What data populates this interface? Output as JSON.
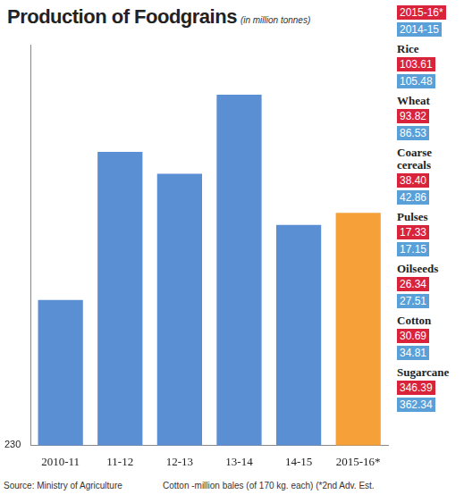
{
  "chart_data": {
    "type": "bar",
    "title": "Production of Foodgrains",
    "subtitle": "(in million tonnes)",
    "categories": [
      "2010-11",
      "11-12",
      "12-13",
      "13-14",
      "14-15",
      "2015-16*"
    ],
    "values": [
      244.5,
      259.3,
      257.1,
      265.0,
      252.0,
      253.2
    ],
    "colors": [
      "#5b8fd3",
      "#5b8fd3",
      "#5b8fd3",
      "#5b8fd3",
      "#5b8fd3",
      "#f6a03a"
    ],
    "ylim": [
      230,
      270
    ],
    "yticks": [
      230
    ],
    "grid": false,
    "side_panel": {
      "headers": [
        {
          "label": "2015-16*",
          "color": "#d8233a"
        },
        {
          "label": "2014-15",
          "color": "#5aa0d8"
        }
      ],
      "items": [
        {
          "label": "Rice",
          "values": [
            "103.61",
            "105.48"
          ]
        },
        {
          "label": "Wheat",
          "values": [
            "93.82",
            "86.53"
          ]
        },
        {
          "label": "Coarse cereals",
          "values": [
            "38.40",
            "42.86"
          ]
        },
        {
          "label": "Pulses",
          "values": [
            "17.33",
            "17.15"
          ]
        },
        {
          "label": "Oilseeds",
          "values": [
            "26.34",
            "27.51"
          ]
        },
        {
          "label": "Cotton",
          "values": [
            "30.69",
            "34.81"
          ]
        },
        {
          "label": "Sugarcane",
          "values": [
            "346.39",
            "362.34"
          ]
        }
      ]
    },
    "source": "Source: Ministry of Agriculture",
    "note": "Cotton -million bales (of 170 kg. each) (*2nd Adv. Est."
  }
}
